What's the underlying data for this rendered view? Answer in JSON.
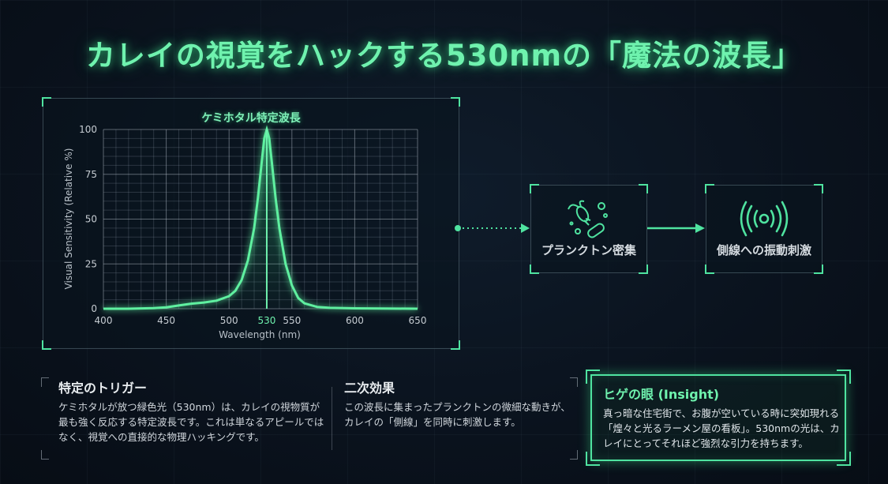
{
  "title": "カレイの視覚をハックする530nmの「魔法の波長」",
  "chart_data": {
    "type": "line",
    "title": "ケミホタル特定波長",
    "xlabel": "Wavelength (nm)",
    "ylabel": "Visual Sensitivity (Relative %)",
    "xlim": [
      400,
      650
    ],
    "ylim": [
      0,
      100
    ],
    "xticks": [
      400,
      450,
      500,
      530,
      550,
      600,
      650
    ],
    "yticks": [
      0,
      25,
      50,
      75,
      100
    ],
    "highlight_x": 530,
    "grid": true,
    "x": [
      400,
      420,
      440,
      450,
      460,
      470,
      480,
      490,
      500,
      505,
      510,
      515,
      520,
      523,
      526,
      528,
      530,
      532,
      534,
      537,
      540,
      545,
      550,
      555,
      560,
      570,
      580,
      600,
      650
    ],
    "y": [
      0,
      0,
      0.3,
      0.8,
      1.8,
      2.8,
      3.5,
      4.5,
      7,
      10,
      16,
      27,
      45,
      62,
      82,
      95,
      100,
      95,
      82,
      62,
      45,
      25,
      13,
      6,
      3,
      1,
      0.5,
      0.2,
      0
    ],
    "colors": {
      "line": "#5ef0a0",
      "highlight": "#6ff2ae"
    }
  },
  "flow": {
    "nodes": [
      {
        "label": "プランクトン密集",
        "icon": "plankton-icon"
      },
      {
        "label": "側線への振動刺激",
        "icon": "vibration-icon"
      }
    ]
  },
  "cards": [
    {
      "title": "特定のトリガー",
      "body": "ケミホタルが放つ緑色光（530nm）は、カレイの視物質が最も強く反応する特定波長です。これは単なるアピールではなく、視覚への直接的な物理ハッキングです。"
    },
    {
      "title": "二次効果",
      "body": "この波長に集まったプランクトンの微細な動きが、カレイの「側線」を同時に刺激します。"
    },
    {
      "title": "ヒゲの眼 (Insight)",
      "body": "真っ暗な住宅街で、お腹が空いている時に突如現れる「煌々と光るラーメン屋の看板」。530nmの光は、カレイにとってそれほど強烈な引力を持ちます。"
    }
  ],
  "accent": "#4fe3a0"
}
